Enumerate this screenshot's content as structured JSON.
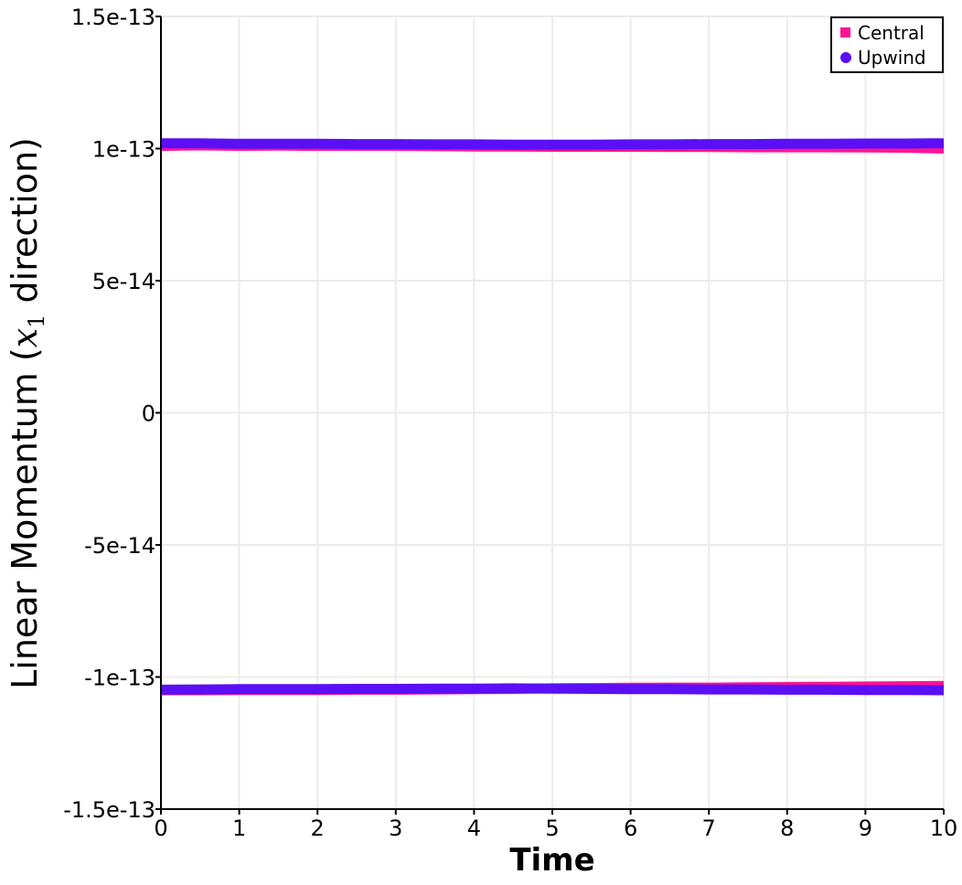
{
  "chart_data": {
    "type": "line",
    "xlabel": "Time",
    "ylabel_main": "Linear Momentum (",
    "ylabel_var": "x",
    "ylabel_sub": "1",
    "ylabel_end": " direction)",
    "xlim": [
      0,
      10
    ],
    "ylim": [
      -1.5e-13,
      1.5e-13
    ],
    "x_ticks": [
      0,
      1,
      2,
      3,
      4,
      5,
      6,
      7,
      8,
      9,
      10
    ],
    "x_tick_labels": [
      "0",
      "1",
      "2",
      "3",
      "4",
      "5",
      "6",
      "7",
      "8",
      "9",
      "10"
    ],
    "y_ticks": [
      1.5e-13,
      1e-13,
      5e-14,
      0,
      -5e-14,
      -1e-13,
      -1.5e-13
    ],
    "y_tick_labels": [
      "1.5e-13",
      "1e-13",
      "5e-14",
      "0",
      "-5e-14",
      "-1e-13",
      "-1.5e-13"
    ],
    "grid": true,
    "legend_position": "top-right",
    "x": [
      0,
      0.5,
      1,
      1.5,
      2,
      2.5,
      3,
      3.5,
      4,
      4.5,
      5,
      5.5,
      6,
      6.5,
      7,
      7.5,
      8,
      8.5,
      9,
      9.5,
      10
    ],
    "series": [
      {
        "name": "Central",
        "color": "#ff1493",
        "marker": "square",
        "upper_values": [
          1.01e-13,
          1.012e-13,
          1.01e-13,
          1.011e-13,
          1.01e-13,
          1.01e-13,
          1.01e-13,
          1.009e-13,
          1.008e-13,
          1.008e-13,
          1.007e-13,
          1.007e-13,
          1.007e-13,
          1.006e-13,
          1.006e-13,
          1.005e-13,
          1.005e-13,
          1.005e-13,
          1.004e-13,
          1.003e-13,
          1e-13
        ],
        "lower_values": [
          -1.05e-13,
          -1.05e-13,
          -1.049e-13,
          -1.049e-13,
          -1.049e-13,
          -1.048e-13,
          -1.048e-13,
          -1.047e-13,
          -1.046e-13,
          -1.045e-13,
          -1.043e-13,
          -1.042e-13,
          -1.041e-13,
          -1.04e-13,
          -1.04e-13,
          -1.039e-13,
          -1.038e-13,
          -1.037e-13,
          -1.036e-13,
          -1.035e-13,
          -1.034e-13
        ]
      },
      {
        "name": "Upwind",
        "color": "#5b0ff5",
        "marker": "circle",
        "upper_values": [
          1.02e-13,
          1.02e-13,
          1.018e-13,
          1.018e-13,
          1.018e-13,
          1.017e-13,
          1.017e-13,
          1.016e-13,
          1.016e-13,
          1.015e-13,
          1.015e-13,
          1.015e-13,
          1.016e-13,
          1.016e-13,
          1.017e-13,
          1.017e-13,
          1.018e-13,
          1.018e-13,
          1.019e-13,
          1.019e-13,
          1.02e-13
        ],
        "lower_values": [
          -1.048e-13,
          -1.047e-13,
          -1.046e-13,
          -1.046e-13,
          -1.046e-13,
          -1.045e-13,
          -1.045e-13,
          -1.044e-13,
          -1.044e-13,
          -1.043e-13,
          -1.044e-13,
          -1.045e-13,
          -1.046e-13,
          -1.046e-13,
          -1.047e-13,
          -1.047e-13,
          -1.048e-13,
          -1.048e-13,
          -1.049e-13,
          -1.049e-13,
          -1.05e-13
        ]
      }
    ]
  }
}
